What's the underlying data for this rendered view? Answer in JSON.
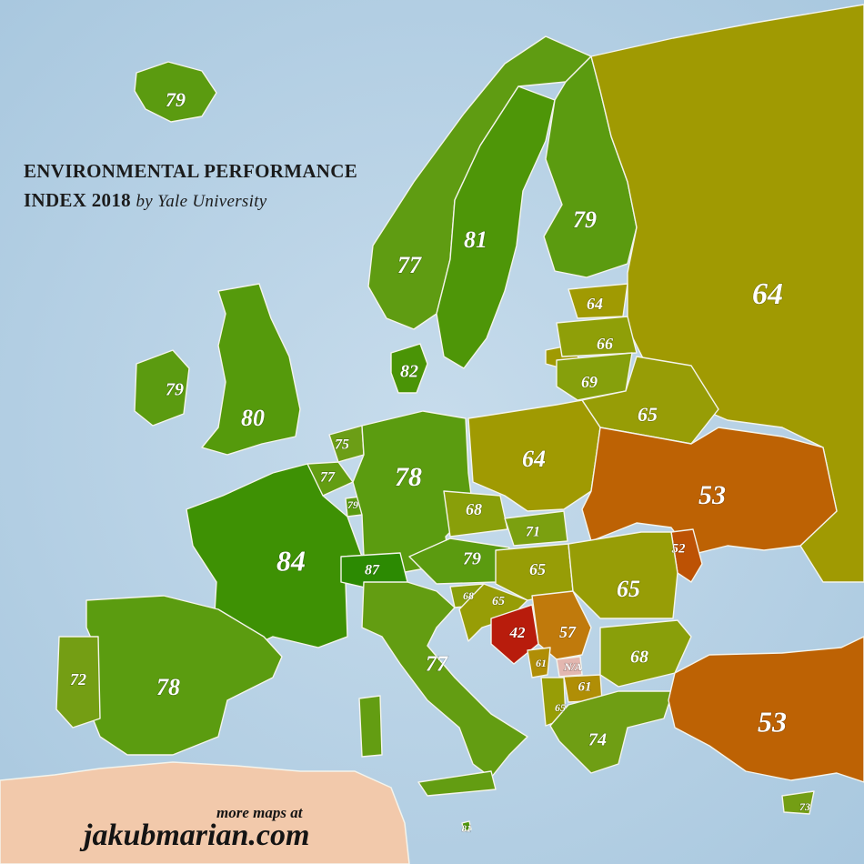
{
  "title": {
    "line1": "ENVIRONMENTAL PERFORMANCE",
    "line2": "INDEX 2018",
    "byline": "by Yale University"
  },
  "credit": {
    "small": "more maps at",
    "site": "jakubmarian.com"
  },
  "colors": {
    "sea": "#b9d3e6",
    "africa": "#f2c9ab",
    "border": "#f4f4ec",
    "na": "#e3b7b0"
  },
  "countries": [
    {
      "name": "Iceland",
      "value": "79",
      "color": "#5b9b10"
    },
    {
      "name": "Norway",
      "value": "77",
      "color": "#5f9c12"
    },
    {
      "name": "Sweden",
      "value": "81",
      "color": "#4e9608"
    },
    {
      "name": "Finland",
      "value": "79",
      "color": "#5b9b10"
    },
    {
      "name": "Russia",
      "value": "64",
      "color": "#a09a02"
    },
    {
      "name": "Ireland",
      "value": "79",
      "color": "#5b9b10"
    },
    {
      "name": "United Kingdom",
      "value": "80",
      "color": "#559a0c"
    },
    {
      "name": "Denmark",
      "value": "82",
      "color": "#4a9406"
    },
    {
      "name": "Estonia",
      "value": "64",
      "color": "#a09a02"
    },
    {
      "name": "Latvia",
      "value": "66",
      "color": "#8f9f08"
    },
    {
      "name": "Lithuania",
      "value": "69",
      "color": "#86a00c"
    },
    {
      "name": "Belarus",
      "value": "65",
      "color": "#979d06"
    },
    {
      "name": "Netherlands",
      "value": "75",
      "color": "#6c9e16"
    },
    {
      "name": "Belgium",
      "value": "77",
      "color": "#639d12"
    },
    {
      "name": "Luxembourg",
      "value": "79",
      "color": "#5b9b10"
    },
    {
      "name": "Germany",
      "value": "78",
      "color": "#5b9c10"
    },
    {
      "name": "Poland",
      "value": "64",
      "color": "#a09a02"
    },
    {
      "name": "Ukraine",
      "value": "53",
      "color": "#bd6204"
    },
    {
      "name": "Moldova",
      "value": "52",
      "color": "#bd5204"
    },
    {
      "name": "France",
      "value": "84",
      "color": "#3e9104"
    },
    {
      "name": "Switzerland",
      "value": "87",
      "color": "#2c8a02"
    },
    {
      "name": "Czechia",
      "value": "68",
      "color": "#899f0a"
    },
    {
      "name": "Slovakia",
      "value": "71",
      "color": "#7ba010"
    },
    {
      "name": "Austria",
      "value": "79",
      "color": "#5b9b10"
    },
    {
      "name": "Hungary",
      "value": "65",
      "color": "#979d06"
    },
    {
      "name": "Romania",
      "value": "65",
      "color": "#979d06"
    },
    {
      "name": "Slovenia",
      "value": "68",
      "color": "#899f0a"
    },
    {
      "name": "Croatia",
      "value": "65",
      "color": "#979d06"
    },
    {
      "name": "Bosnia and Herzegovina",
      "value": "42",
      "color": "#b81c0c"
    },
    {
      "name": "Serbia",
      "value": "57",
      "color": "#c07a0c"
    },
    {
      "name": "Montenegro",
      "value": "61",
      "color": "#b08e06"
    },
    {
      "name": "Kosovo",
      "value": "N/A",
      "color": "#e3b7b0"
    },
    {
      "name": "North Macedonia",
      "value": "61",
      "color": "#b08e06"
    },
    {
      "name": "Albania",
      "value": "65",
      "color": "#979d06"
    },
    {
      "name": "Bulgaria",
      "value": "68",
      "color": "#899f0a"
    },
    {
      "name": "Greece",
      "value": "74",
      "color": "#6f9e14"
    },
    {
      "name": "Turkey",
      "value": "53",
      "color": "#bd6204"
    },
    {
      "name": "Cyprus",
      "value": "73",
      "color": "#749e14"
    },
    {
      "name": "Italy",
      "value": "77",
      "color": "#639d12"
    },
    {
      "name": "Malta",
      "value": "81",
      "color": "#4e9608"
    },
    {
      "name": "Spain",
      "value": "78",
      "color": "#5b9c10"
    },
    {
      "name": "Portugal",
      "value": "72",
      "color": "#749e14"
    }
  ]
}
